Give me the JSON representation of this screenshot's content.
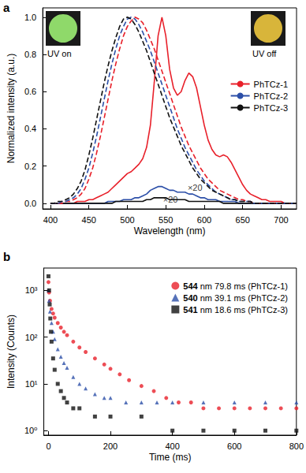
{
  "chart_data": [
    {
      "type": "line",
      "panel_label": "a",
      "x_label": "Wavelength (nm)",
      "y_label": "Normalized intensity (a.u.)",
      "x": [
        400,
        405,
        410,
        415,
        420,
        425,
        430,
        435,
        440,
        445,
        450,
        455,
        460,
        465,
        470,
        475,
        480,
        485,
        490,
        495,
        500,
        505,
        510,
        515,
        520,
        525,
        530,
        535,
        540,
        545,
        550,
        555,
        560,
        565,
        570,
        575,
        580,
        585,
        590,
        595,
        600,
        605,
        610,
        615,
        620,
        625,
        630,
        635,
        640,
        645,
        650,
        655,
        660,
        665,
        670,
        675,
        680,
        685,
        690,
        695,
        700,
        705,
        710,
        715,
        720
      ],
      "series": [
        {
          "name": "PhTCz-1",
          "color": "#e8202a",
          "line_style": "solid",
          "values": [
            0,
            0,
            0,
            0,
            0,
            0,
            0,
            0.01,
            0.01,
            0.01,
            0.02,
            0.02,
            0.03,
            0.04,
            0.05,
            0.06,
            0.08,
            0.1,
            0.12,
            0.14,
            0.16,
            0.17,
            0.19,
            0.21,
            0.24,
            0.3,
            0.42,
            0.65,
            0.9,
            1.0,
            0.9,
            0.72,
            0.62,
            0.58,
            0.6,
            0.66,
            0.7,
            0.68,
            0.62,
            0.52,
            0.42,
            0.34,
            0.29,
            0.26,
            0.25,
            0.26,
            0.25,
            0.22,
            0.18,
            0.14,
            0.1,
            0.07,
            0.05,
            0.04,
            0.03,
            0.02,
            0.02,
            0.01,
            0.01,
            0.01,
            0.01,
            0,
            0,
            0,
            0
          ]
        },
        {
          "name": "PhTCz-2",
          "color": "#2c4fa8",
          "line_style": "solid",
          "values": [
            0,
            0,
            0,
            0,
            0,
            0,
            0,
            0,
            0,
            0,
            0,
            0,
            0,
            0,
            0,
            0.01,
            0.01,
            0.01,
            0.01,
            0.02,
            0.02,
            0.02,
            0.03,
            0.03,
            0.04,
            0.05,
            0.07,
            0.08,
            0.09,
            0.09,
            0.08,
            0.07,
            0.07,
            0.06,
            0.06,
            0.06,
            0.05,
            0.05,
            0.04,
            0.03,
            0.03,
            0.02,
            0.02,
            0.02,
            0.01,
            0.01,
            0.01,
            0.01,
            0.01,
            0,
            0,
            0,
            0,
            0,
            0,
            0,
            0,
            0,
            0,
            0,
            0,
            0,
            0,
            0,
            0
          ]
        },
        {
          "name": "PhTCz-3",
          "color": "#111111",
          "line_style": "solid",
          "values": [
            0,
            0,
            0,
            0,
            0,
            0,
            0,
            0,
            0,
            0,
            0,
            0,
            0,
            0,
            0,
            0,
            0,
            0.01,
            0.01,
            0.01,
            0.01,
            0.01,
            0.01,
            0.01,
            0.01,
            0.02,
            0.02,
            0.03,
            0.03,
            0.03,
            0.03,
            0.02,
            0.02,
            0.02,
            0.02,
            0.02,
            0.01,
            0.01,
            0.01,
            0.01,
            0.01,
            0.01,
            0.01,
            0.01,
            0.01,
            0,
            0,
            0,
            0,
            0,
            0,
            0,
            0,
            0,
            0,
            0,
            0,
            0,
            0,
            0,
            0,
            0,
            0,
            0,
            0
          ]
        },
        {
          "name": "PhTCz-1",
          "color": "#e8202a",
          "line_style": "dashed",
          "values": [
            0,
            0,
            0,
            0,
            0.01,
            0.01,
            0.02,
            0.03,
            0.05,
            0.08,
            0.13,
            0.19,
            0.27,
            0.36,
            0.46,
            0.56,
            0.66,
            0.75,
            0.83,
            0.9,
            0.95,
            0.98,
            1.0,
            0.99,
            0.97,
            0.93,
            0.88,
            0.83,
            0.77,
            0.71,
            0.65,
            0.59,
            0.53,
            0.47,
            0.41,
            0.36,
            0.31,
            0.27,
            0.23,
            0.19,
            0.16,
            0.13,
            0.11,
            0.09,
            0.07,
            0.06,
            0.05,
            0.04,
            0.03,
            0.02,
            0.02,
            0.01,
            0.01,
            0,
            0,
            0,
            0,
            0,
            0,
            0,
            0,
            0,
            0,
            0,
            0
          ]
        },
        {
          "name": "PhTCz-2",
          "color": "#2c4fa8",
          "line_style": "dashed",
          "values": [
            0,
            0,
            0,
            0.01,
            0.01,
            0.02,
            0.03,
            0.05,
            0.08,
            0.13,
            0.19,
            0.27,
            0.36,
            0.46,
            0.56,
            0.66,
            0.75,
            0.83,
            0.9,
            0.95,
            0.99,
            1.0,
            0.99,
            0.96,
            0.92,
            0.87,
            0.82,
            0.76,
            0.7,
            0.64,
            0.58,
            0.52,
            0.46,
            0.4,
            0.35,
            0.3,
            0.26,
            0.22,
            0.18,
            0.15,
            0.12,
            0.1,
            0.08,
            0.06,
            0.05,
            0.04,
            0.03,
            0.02,
            0.02,
            0.01,
            0.01,
            0.01,
            0.01,
            0,
            0,
            0,
            0,
            0,
            0,
            0,
            0,
            0,
            0,
            0,
            0
          ]
        },
        {
          "name": "PhTCz-3",
          "color": "#111111",
          "line_style": "dashed",
          "values": [
            0,
            0,
            0.01,
            0.01,
            0.02,
            0.03,
            0.05,
            0.08,
            0.12,
            0.18,
            0.26,
            0.35,
            0.45,
            0.55,
            0.65,
            0.74,
            0.82,
            0.89,
            0.95,
            0.99,
            1.0,
            0.99,
            0.96,
            0.92,
            0.87,
            0.82,
            0.76,
            0.7,
            0.64,
            0.58,
            0.52,
            0.46,
            0.41,
            0.36,
            0.31,
            0.27,
            0.23,
            0.19,
            0.16,
            0.13,
            0.11,
            0.09,
            0.07,
            0.06,
            0.05,
            0.04,
            0.03,
            0.02,
            0.02,
            0.01,
            0.01,
            0.01,
            0.01,
            0,
            0,
            0,
            0,
            0,
            0,
            0,
            0,
            0,
            0,
            0,
            0
          ]
        }
      ],
      "xlim": [
        390,
        720
      ],
      "xticks": [
        400,
        450,
        500,
        550,
        600,
        650,
        700
      ],
      "ylim": [
        -0.03,
        1.05
      ],
      "yticks": [
        {
          "value": 0,
          "label": "0.0"
        },
        {
          "value": 0.2,
          "label": "0.2"
        },
        {
          "value": 0.4,
          "label": "0.4"
        },
        {
          "value": 0.6,
          "label": "0.6"
        },
        {
          "value": 0.8,
          "label": "0.8"
        },
        {
          "value": 1,
          "label": "1.0"
        }
      ],
      "grid": false,
      "legend": "upper right",
      "annotations": [
        {
          "text": "×20",
          "x": 588,
          "y": 0.085
        },
        {
          "text": "×20",
          "x": 556,
          "y": 0.02
        }
      ],
      "insets": [
        {
          "text": "UV on",
          "color": "#8fd96a"
        },
        {
          "text": "UV off",
          "color": "#d8b53a"
        }
      ]
    },
    {
      "type": "scatter",
      "panel_label": "b",
      "x_label": "Time (ms)",
      "y_label": "Intensity (Counts)",
      "series": [
        {
          "name": "544 nm 79.8 ms (PhTCz-1)",
          "color": "#e8202a",
          "marker": "circle",
          "x": [
            0,
            2,
            5,
            10,
            15,
            20,
            30,
            40,
            50,
            60,
            80,
            100,
            120,
            150,
            180,
            200,
            230,
            260,
            300,
            340,
            380,
            420,
            460,
            500,
            550,
            600,
            650,
            700,
            750,
            800
          ],
          "values": [
            1500,
            900,
            600,
            400,
            320,
            260,
            200,
            160,
            130,
            110,
            80,
            60,
            48,
            35,
            26,
            21,
            16,
            12,
            9,
            7,
            5,
            4,
            4,
            3,
            3,
            3,
            3,
            3,
            3,
            3
          ]
        },
        {
          "name": "540 nm 39.1 ms (PhTCz-2)",
          "color": "#2c4fa8",
          "marker": "triangle",
          "x": [
            0,
            2,
            5,
            10,
            15,
            20,
            30,
            40,
            50,
            60,
            80,
            100,
            120,
            150,
            180,
            200,
            250,
            300,
            350,
            400,
            500,
            600,
            700,
            800
          ],
          "values": [
            1000,
            600,
            350,
            200,
            130,
            90,
            55,
            38,
            28,
            22,
            14,
            10,
            8,
            6,
            5,
            5,
            4,
            4,
            4,
            4,
            4,
            4,
            4,
            4
          ]
        },
        {
          "name": "541 nm 18.6 ms (PhTCz-3)",
          "color": "#111111",
          "marker": "square",
          "x": [
            0,
            2,
            4,
            6,
            8,
            10,
            15,
            20,
            30,
            40,
            50,
            60,
            80,
            100,
            150,
            200,
            300,
            400,
            500,
            600,
            700,
            800
          ],
          "values": [
            2000,
            1000,
            500,
            250,
            130,
            80,
            35,
            20,
            10,
            7,
            5,
            4,
            3,
            3,
            2,
            2,
            2,
            1,
            1,
            1,
            1,
            1
          ]
        }
      ],
      "xlim": [
        -15,
        800
      ],
      "xticks": [
        0,
        200,
        400,
        600,
        800
      ],
      "ylim": [
        0.8,
        3000
      ],
      "yticks": [
        {
          "value": 1,
          "label": "10⁰"
        },
        {
          "value": 10,
          "label": "10¹"
        },
        {
          "value": 100,
          "label": "10²"
        },
        {
          "value": 1000,
          "label": "10³"
        }
      ],
      "log": "y",
      "grid": false,
      "legend": "upper right"
    }
  ]
}
